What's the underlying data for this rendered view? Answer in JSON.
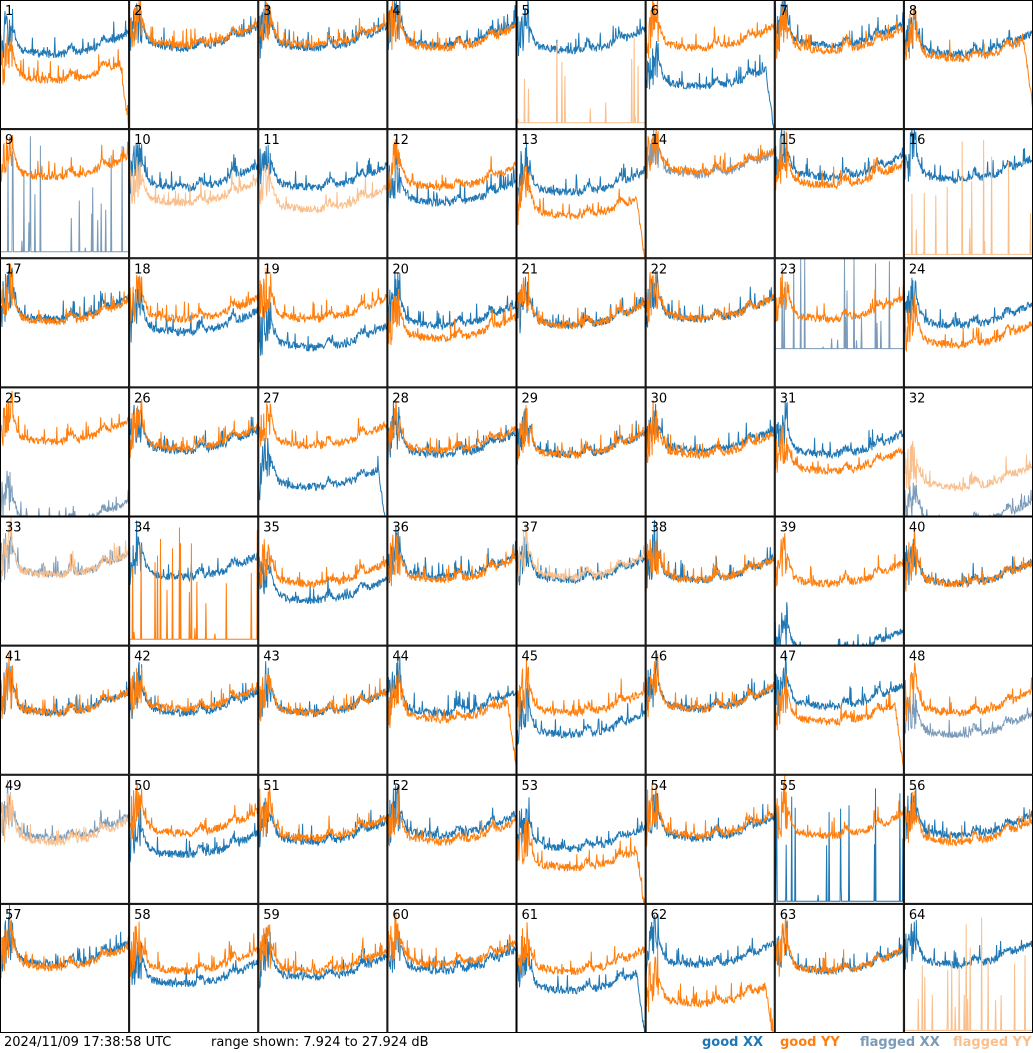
{
  "footer": {
    "timestamp": "2024/11/09 17:38:58 UTC",
    "range_text": "range shown: 7.924 to 27.924 dB"
  },
  "legend": {
    "good_xx": "good XX",
    "good_yy": "good YY",
    "flagged_xx": "flagged XX",
    "flagged_yy": "flagged YY"
  },
  "colors": {
    "good_xx": "#1f77b4",
    "good_yy": "#ff7f0e",
    "flagged_xx": "#7b9bb8",
    "flagged_yy": "#f9c08e"
  },
  "chart_data": {
    "type": "line",
    "ylim": [
      7.924,
      27.924
    ],
    "yunit": "dB",
    "rows": 8,
    "cols": 8,
    "panels": [
      {
        "label": "1",
        "xx": "good",
        "yy": "good",
        "xx_level": 0.65,
        "yy_level": 0.45,
        "yy_drop": true,
        "xx_drop": false
      },
      {
        "label": "2",
        "xx": "good",
        "yy": "good",
        "xx_level": 0.7,
        "yy_level": 0.72
      },
      {
        "label": "3",
        "xx": "good",
        "yy": "good",
        "xx_level": 0.7,
        "yy_level": 0.72
      },
      {
        "label": "4",
        "xx": "good",
        "yy": "good",
        "xx_level": 0.72,
        "yy_level": 0.7
      },
      {
        "label": "5",
        "xx": "good",
        "yy": "flagged",
        "xx_level": 0.68,
        "yy_level": 0.05,
        "yy_spiky": true
      },
      {
        "label": "6",
        "xx": "good",
        "yy": "good",
        "xx_level": 0.4,
        "yy_level": 0.7,
        "xx_drop": true
      },
      {
        "label": "7",
        "xx": "good",
        "yy": "good",
        "xx_level": 0.72,
        "yy_level": 0.68
      },
      {
        "label": "8",
        "xx": "good",
        "yy": "good",
        "xx_level": 0.65,
        "yy_level": 0.62,
        "yy_drop": true
      },
      {
        "label": "9",
        "xx": "flagged",
        "yy": "good",
        "xx_level": 0.05,
        "yy_level": 0.7,
        "xx_spiky": true
      },
      {
        "label": "10",
        "xx": "good",
        "yy": "flagged",
        "xx_level": 0.62,
        "yy_level": 0.5
      },
      {
        "label": "11",
        "xx": "good",
        "yy": "flagged",
        "xx_level": 0.62,
        "yy_level": 0.45
      },
      {
        "label": "12",
        "xx": "good",
        "yy": "good",
        "xx_level": 0.5,
        "yy_level": 0.62
      },
      {
        "label": "13",
        "xx": "good",
        "yy": "good",
        "xx_level": 0.58,
        "yy_level": 0.4,
        "yy_drop": true
      },
      {
        "label": "14",
        "xx": "flagged",
        "yy": "good",
        "xx_level": 0.72,
        "yy_level": 0.74
      },
      {
        "label": "15",
        "xx": "good",
        "yy": "good",
        "xx_level": 0.7,
        "yy_level": 0.64
      },
      {
        "label": "16",
        "xx": "good",
        "yy": "flagged",
        "xx_level": 0.68,
        "yy_level": 0.03,
        "yy_spiky": true
      },
      {
        "label": "17",
        "xx": "good",
        "yy": "good",
        "xx_level": 0.6,
        "yy_level": 0.58
      },
      {
        "label": "18",
        "xx": "good",
        "yy": "good",
        "xx_level": 0.5,
        "yy_level": 0.6
      },
      {
        "label": "19",
        "xx": "good",
        "yy": "good",
        "xx_level": 0.38,
        "yy_level": 0.6
      },
      {
        "label": "20",
        "xx": "good",
        "yy": "good",
        "xx_level": 0.55,
        "yy_level": 0.45
      },
      {
        "label": "21",
        "xx": "good",
        "yy": "good",
        "xx_level": 0.55,
        "yy_level": 0.55
      },
      {
        "label": "22",
        "xx": "good",
        "yy": "good",
        "xx_level": 0.6,
        "yy_level": 0.6
      },
      {
        "label": "23",
        "xx": "flagged",
        "yy": "good",
        "xx_level": 0.3,
        "yy_level": 0.6,
        "xx_spiky": true
      },
      {
        "label": "24",
        "xx": "good",
        "yy": "good",
        "xx_level": 0.55,
        "yy_level": 0.4
      },
      {
        "label": "25",
        "xx": "flagged",
        "yy": "good",
        "xx_level": 0.02,
        "yy_level": 0.65
      },
      {
        "label": "26",
        "xx": "good",
        "yy": "good",
        "xx_level": 0.58,
        "yy_level": 0.6
      },
      {
        "label": "27",
        "xx": "good",
        "yy": "good",
        "xx_level": 0.3,
        "yy_level": 0.62,
        "xx_drop": true
      },
      {
        "label": "28",
        "xx": "good",
        "yy": "good",
        "xx_level": 0.55,
        "yy_level": 0.58
      },
      {
        "label": "29",
        "xx": "good",
        "yy": "good",
        "xx_level": 0.55,
        "yy_level": 0.55
      },
      {
        "label": "30",
        "xx": "good",
        "yy": "good",
        "xx_level": 0.58,
        "yy_level": 0.55
      },
      {
        "label": "31",
        "xx": "good",
        "yy": "good",
        "xx_level": 0.55,
        "yy_level": 0.42
      },
      {
        "label": "32",
        "xx": "flagged",
        "yy": "flagged",
        "xx_level": 0.02,
        "yy_level": 0.3
      },
      {
        "label": "33",
        "xx": "flagged",
        "yy": "flagged",
        "xx_level": 0.62,
        "yy_level": 0.62
      },
      {
        "label": "34",
        "xx": "good",
        "yy": "flagged",
        "xx_level": 0.6,
        "yy_level": 0.05,
        "yy_spiky": true,
        "yy_color": "good"
      },
      {
        "label": "35",
        "xx": "good",
        "yy": "good",
        "xx_level": 0.42,
        "yy_level": 0.55
      },
      {
        "label": "36",
        "xx": "good",
        "yy": "good",
        "xx_level": 0.6,
        "yy_level": 0.58
      },
      {
        "label": "37",
        "xx": "good",
        "yy": "flagged",
        "xx_level": 0.58,
        "yy_level": 0.6
      },
      {
        "label": "38",
        "xx": "good",
        "yy": "good",
        "xx_level": 0.58,
        "yy_level": 0.58
      },
      {
        "label": "39",
        "xx": "flagged",
        "yy": "good",
        "xx_level": 0.02,
        "yy_level": 0.55,
        "xx_color": "good"
      },
      {
        "label": "40",
        "xx": "good",
        "yy": "good",
        "xx_level": 0.55,
        "yy_level": 0.55
      },
      {
        "label": "41",
        "xx": "good",
        "yy": "good",
        "xx_level": 0.55,
        "yy_level": 0.55
      },
      {
        "label": "42",
        "xx": "good",
        "yy": "good",
        "xx_level": 0.55,
        "yy_level": 0.58
      },
      {
        "label": "43",
        "xx": "good",
        "yy": "good",
        "xx_level": 0.55,
        "yy_level": 0.55
      },
      {
        "label": "44",
        "xx": "good",
        "yy": "good",
        "xx_level": 0.55,
        "yy_level": 0.5,
        "yy_drop": true
      },
      {
        "label": "45",
        "xx": "good",
        "yy": "good",
        "xx_level": 0.38,
        "yy_level": 0.55
      },
      {
        "label": "46",
        "xx": "good",
        "yy": "good",
        "xx_level": 0.58,
        "yy_level": 0.58
      },
      {
        "label": "47",
        "xx": "good",
        "yy": "good",
        "xx_level": 0.6,
        "yy_level": 0.48,
        "yy_drop": true
      },
      {
        "label": "48",
        "xx": "flagged",
        "yy": "good",
        "xx_level": 0.38,
        "yy_level": 0.55
      },
      {
        "label": "49",
        "xx": "flagged",
        "yy": "flagged",
        "xx_level": 0.58,
        "yy_level": 0.55
      },
      {
        "label": "50",
        "xx": "good",
        "yy": "good",
        "xx_level": 0.45,
        "yy_level": 0.62
      },
      {
        "label": "51",
        "xx": "good",
        "yy": "good",
        "xx_level": 0.55,
        "yy_level": 0.58
      },
      {
        "label": "52",
        "xx": "good",
        "yy": "good",
        "xx_level": 0.6,
        "yy_level": 0.55
      },
      {
        "label": "53",
        "xx": "good",
        "yy": "good",
        "xx_level": 0.5,
        "yy_level": 0.35,
        "yy_drop": true
      },
      {
        "label": "54",
        "xx": "good",
        "yy": "good",
        "xx_level": 0.58,
        "yy_level": 0.6
      },
      {
        "label": "55",
        "xx": "flagged",
        "yy": "good",
        "xx_level": 0.02,
        "yy_level": 0.6,
        "xx_spiky": true,
        "xx_color": "good"
      },
      {
        "label": "56",
        "xx": "good",
        "yy": "good",
        "xx_level": 0.6,
        "yy_level": 0.55
      },
      {
        "label": "57",
        "xx": "good",
        "yy": "good",
        "xx_level": 0.6,
        "yy_level": 0.58
      },
      {
        "label": "58",
        "xx": "good",
        "yy": "good",
        "xx_level": 0.45,
        "yy_level": 0.55
      },
      {
        "label": "59",
        "xx": "good",
        "yy": "good",
        "xx_level": 0.5,
        "yy_level": 0.55
      },
      {
        "label": "60",
        "xx": "good",
        "yy": "good",
        "xx_level": 0.55,
        "yy_level": 0.6
      },
      {
        "label": "61",
        "xx": "good",
        "yy": "good",
        "xx_level": 0.4,
        "yy_level": 0.55,
        "xx_drop": true
      },
      {
        "label": "62",
        "xx": "good",
        "yy": "good",
        "xx_level": 0.6,
        "yy_level": 0.3,
        "yy_drop": true
      },
      {
        "label": "63",
        "xx": "good",
        "yy": "good",
        "xx_level": 0.55,
        "yy_level": 0.55
      },
      {
        "label": "64",
        "xx": "good",
        "yy": "flagged",
        "xx_level": 0.6,
        "yy_level": 0.02,
        "yy_spiky": true
      }
    ]
  }
}
